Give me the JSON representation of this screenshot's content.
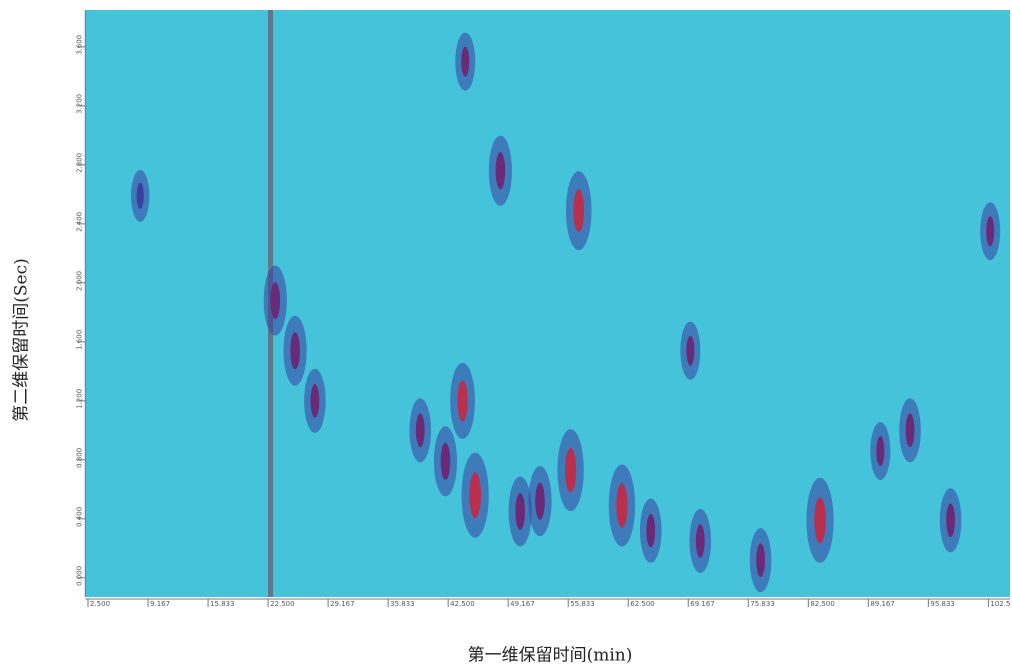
{
  "chart_data": {
    "type": "contour",
    "xlabel": "第一维保留时间(min)",
    "ylabel": "第二维保留时间(Sec)",
    "xlim": [
      2.2,
      104.9
    ],
    "ylim": [
      -0.13,
      3.85
    ],
    "xticks": [
      {
        "value": 2.5,
        "label": "2.500"
      },
      {
        "value": 9.167,
        "label": "9.167"
      },
      {
        "value": 15.833,
        "label": "15.833"
      },
      {
        "value": 22.5,
        "label": "22.500"
      },
      {
        "value": 29.167,
        "label": "29.167"
      },
      {
        "value": 35.833,
        "label": "35.833"
      },
      {
        "value": 42.5,
        "label": "42.500"
      },
      {
        "value": 49.167,
        "label": "49.167"
      },
      {
        "value": 55.833,
        "label": "55.833"
      },
      {
        "value": 62.5,
        "label": "62.500"
      },
      {
        "value": 69.167,
        "label": "69.167"
      },
      {
        "value": 75.833,
        "label": "75.833"
      },
      {
        "value": 82.5,
        "label": "82.500"
      },
      {
        "value": 89.167,
        "label": "89.167"
      },
      {
        "value": 95.833,
        "label": "95.833"
      },
      102.5
    ],
    "yticks": [
      {
        "value": 0,
        "label": "0.000"
      },
      {
        "value": 0.4,
        "label": "0.400"
      },
      {
        "value": 0.8,
        "label": "0.800"
      },
      {
        "value": 1.2,
        "label": "1.200"
      },
      {
        "value": 1.6,
        "label": "1.600"
      },
      {
        "value": 2,
        "label": "2.000"
      },
      {
        "value": 2.4,
        "label": "2.400"
      },
      {
        "value": 2.8,
        "label": "2.800"
      },
      {
        "value": 3.2,
        "label": "3.200"
      },
      {
        "value": 3.6,
        "label": "3.600"
      }
    ],
    "background": "#44c3db",
    "colormap": [
      "#3b6fc4",
      "#3a3f9e",
      "#6a2a78",
      "#b8304e",
      "#d6d640"
    ],
    "x": [
      23.3,
      25.5,
      27.7,
      8.3,
      39.4,
      42.2,
      44.1,
      45.5,
      44.4,
      48.3,
      57.0,
      56.1,
      61.8,
      70.5,
      77.2,
      83.8,
      65.0,
      90.5,
      93.8,
      102.7,
      98.3,
      50.5,
      52.7,
      69.4
    ],
    "y": [
      1.88,
      1.54,
      1.2,
      2.59,
      1.0,
      0.79,
      1.2,
      0.56,
      3.5,
      2.76,
      2.49,
      0.73,
      0.49,
      0.25,
      0.12,
      0.39,
      0.32,
      0.86,
      1.0,
      2.35,
      0.39,
      0.45,
      0.52,
      1.54
    ],
    "intensity": [
      0.7,
      0.7,
      0.6,
      0.4,
      0.6,
      0.7,
      0.8,
      0.95,
      0.5,
      0.7,
      0.85,
      0.9,
      0.9,
      0.6,
      0.6,
      0.95,
      0.6,
      0.5,
      0.6,
      0.5,
      0.6,
      0.7,
      0.7,
      0.5
    ]
  }
}
